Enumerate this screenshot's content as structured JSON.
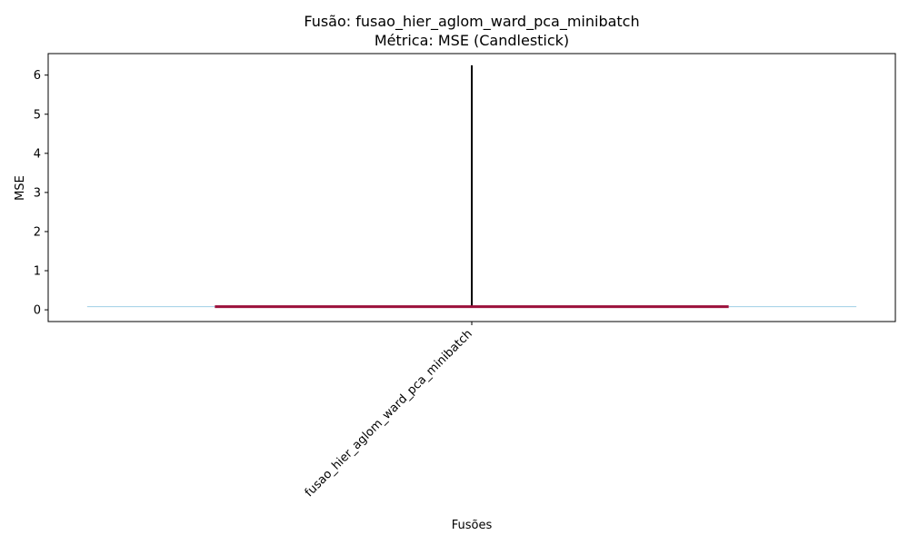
{
  "chart_data": {
    "type": "candlestick",
    "title": "Fusão: fusao_hier_aglom_ward_pca_minibatch",
    "subtitle": "Métrica: MSE (Candlestick)",
    "xlabel": "Fusões",
    "ylabel": "MSE",
    "categories": [
      "fusao_hier_aglom_ward_pca_minibatch"
    ],
    "yticks": [
      "0",
      "1",
      "2",
      "3",
      "4",
      "5",
      "6"
    ],
    "ylim": [
      -0.3,
      6.55
    ],
    "candles": [
      {
        "category": "fusao_hier_aglom_ward_pca_minibatch",
        "low": 0.07,
        "q1": 0.07,
        "median": 0.08,
        "q3": 0.09,
        "high": 6.25
      }
    ],
    "reference_value": 0.08,
    "colors": {
      "whisker": "#000000",
      "body": "#9b0f3a",
      "reference_line": "#9fcfe6"
    },
    "grid": false,
    "legend": "none"
  }
}
